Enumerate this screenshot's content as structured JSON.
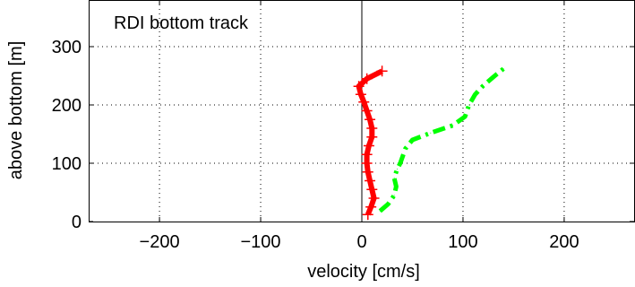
{
  "chart_data": {
    "type": "line",
    "title": "RDI bottom track",
    "xlabel": "velocity [cm/s]",
    "ylabel": "above bottom [m]",
    "xlim": [
      -270,
      270
    ],
    "ylim": [
      0,
      380
    ],
    "xticks": [
      -200,
      -100,
      0,
      100,
      200
    ],
    "xtick_labels": [
      "−200",
      "−100",
      "0",
      "100",
      "200"
    ],
    "yticks": [
      0,
      100,
      200,
      300
    ],
    "ytick_labels": [
      "0",
      "100",
      "200",
      "300"
    ],
    "grid": true,
    "zero_line_x": 0,
    "series": [
      {
        "color": "#ff0000",
        "style": "solid-with-cross-markers",
        "points": [
          [
            6,
            12
          ],
          [
            9,
            25
          ],
          [
            12,
            40
          ],
          [
            10,
            55
          ],
          [
            8,
            70
          ],
          [
            6,
            85
          ],
          [
            5,
            100
          ],
          [
            5,
            115
          ],
          [
            7,
            130
          ],
          [
            10,
            145
          ],
          [
            10,
            160
          ],
          [
            8,
            175
          ],
          [
            5,
            190
          ],
          [
            2,
            205
          ],
          [
            -1,
            218
          ],
          [
            -3,
            232
          ],
          [
            5,
            245
          ],
          [
            20,
            258
          ]
        ]
      },
      {
        "color": "#00ff00",
        "style": "dash-dot",
        "points": [
          [
            18,
            18
          ],
          [
            26,
            30
          ],
          [
            32,
            45
          ],
          [
            34,
            60
          ],
          [
            32,
            75
          ],
          [
            35,
            90
          ],
          [
            38,
            100
          ],
          [
            40,
            110
          ],
          [
            43,
            125
          ],
          [
            50,
            140
          ],
          [
            68,
            152
          ],
          [
            90,
            165
          ],
          [
            102,
            180
          ],
          [
            106,
            200
          ],
          [
            112,
            218
          ],
          [
            120,
            233
          ],
          [
            130,
            248
          ],
          [
            140,
            262
          ]
        ]
      }
    ]
  }
}
